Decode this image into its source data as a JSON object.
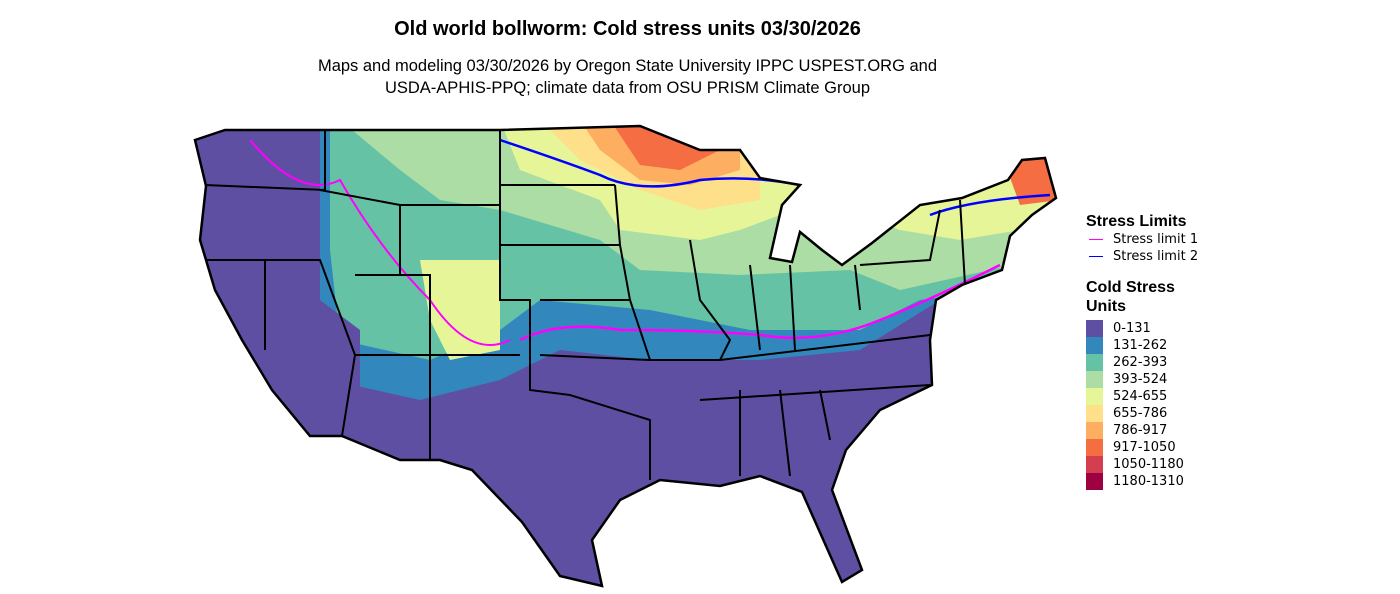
{
  "title": "Old world bollworm: Cold stress units 03/30/2026",
  "subtitle_line1": "Maps and modeling 03/30/2026 by Oregon State University IPPC USPEST.ORG and",
  "subtitle_line2": "USDA-APHIS-PPQ; climate data from OSU PRISM Climate Group",
  "legend": {
    "stress_title": "Stress Limits",
    "stress_limits": [
      {
        "label": "Stress limit 1",
        "color": "#FF00FF"
      },
      {
        "label": "Stress limit 2",
        "color": "#0000FF"
      }
    ],
    "units_title_line1": "Cold Stress",
    "units_title_line2": "Units",
    "bins": [
      {
        "label": "0-131",
        "color": "#5E4FA2"
      },
      {
        "label": "131-262",
        "color": "#3288BD"
      },
      {
        "label": "262-393",
        "color": "#66C2A5"
      },
      {
        "label": "393-524",
        "color": "#ABDDA4"
      },
      {
        "label": "524-655",
        "color": "#E6F598"
      },
      {
        "label": "655-786",
        "color": "#FEE08B"
      },
      {
        "label": "786-917",
        "color": "#FDAE61"
      },
      {
        "label": "917-1050",
        "color": "#F46D43"
      },
      {
        "label": "1050-1180",
        "color": "#D53E4F"
      },
      {
        "label": "1180-1310",
        "color": "#9E0142"
      }
    ]
  }
}
